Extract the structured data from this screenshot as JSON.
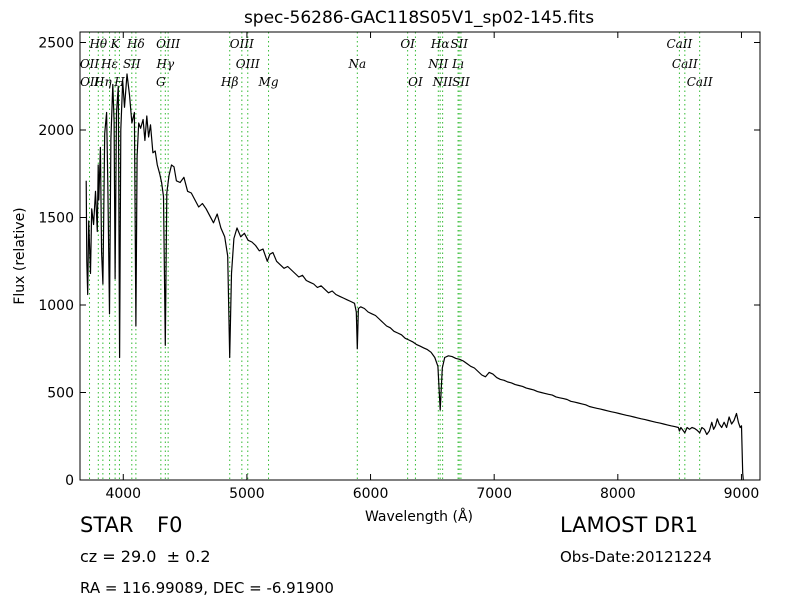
{
  "chart_data": {
    "type": "line",
    "title": "spec-56286-GAC118S05V1_sp02-145.fits",
    "xlabel": "Wavelength (Å)",
    "ylabel": "Flux (relative)",
    "xlim": [
      3650,
      9150
    ],
    "ylim": [
      0,
      2560
    ],
    "xticks": [
      4000,
      5000,
      6000,
      7000,
      8000,
      9000
    ],
    "yticks": [
      0,
      500,
      1000,
      1500,
      2000,
      2500
    ],
    "grid": false,
    "series": [
      {
        "color": "#000000",
        "points": [
          [
            3700,
            1710
          ],
          [
            3705,
            1250
          ],
          [
            3712,
            1060
          ],
          [
            3720,
            1480
          ],
          [
            3735,
            1180
          ],
          [
            3745,
            1550
          ],
          [
            3760,
            1460
          ],
          [
            3775,
            1650
          ],
          [
            3790,
            1420
          ],
          [
            3797,
            1800
          ],
          [
            3802,
            1600
          ],
          [
            3815,
            1900
          ],
          [
            3825,
            1300
          ],
          [
            3835,
            1120
          ],
          [
            3850,
            1980
          ],
          [
            3865,
            2100
          ],
          [
            3875,
            1700
          ],
          [
            3889,
            950
          ],
          [
            3900,
            1950
          ],
          [
            3915,
            2260
          ],
          [
            3926,
            2050
          ],
          [
            3934,
            1150
          ],
          [
            3945,
            2100
          ],
          [
            3960,
            2250
          ],
          [
            3970,
            700
          ],
          [
            3980,
            2000
          ],
          [
            3995,
            2280
          ],
          [
            4010,
            2130
          ],
          [
            4030,
            2320
          ],
          [
            4050,
            2200
          ],
          [
            4070,
            2040
          ],
          [
            4090,
            2100
          ],
          [
            4102,
            880
          ],
          [
            4112,
            1850
          ],
          [
            4125,
            2040
          ],
          [
            4140,
            2010
          ],
          [
            4160,
            2060
          ],
          [
            4175,
            1940
          ],
          [
            4190,
            2080
          ],
          [
            4205,
            1960
          ],
          [
            4220,
            2030
          ],
          [
            4240,
            1870
          ],
          [
            4258,
            1880
          ],
          [
            4275,
            1800
          ],
          [
            4295,
            1750
          ],
          [
            4310,
            1700
          ],
          [
            4325,
            1620
          ],
          [
            4340,
            770
          ],
          [
            4352,
            1640
          ],
          [
            4370,
            1740
          ],
          [
            4390,
            1800
          ],
          [
            4410,
            1790
          ],
          [
            4430,
            1710
          ],
          [
            4460,
            1700
          ],
          [
            4490,
            1730
          ],
          [
            4520,
            1650
          ],
          [
            4550,
            1640
          ],
          [
            4580,
            1600
          ],
          [
            4610,
            1560
          ],
          [
            4640,
            1580
          ],
          [
            4670,
            1550
          ],
          [
            4700,
            1510
          ],
          [
            4730,
            1470
          ],
          [
            4760,
            1520
          ],
          [
            4790,
            1440
          ],
          [
            4820,
            1390
          ],
          [
            4845,
            1280
          ],
          [
            4861,
            700
          ],
          [
            4875,
            1180
          ],
          [
            4895,
            1380
          ],
          [
            4920,
            1440
          ],
          [
            4950,
            1390
          ],
          [
            4980,
            1410
          ],
          [
            5010,
            1370
          ],
          [
            5040,
            1360
          ],
          [
            5070,
            1340
          ],
          [
            5100,
            1310
          ],
          [
            5130,
            1320
          ],
          [
            5165,
            1250
          ],
          [
            5185,
            1290
          ],
          [
            5210,
            1300
          ],
          [
            5240,
            1250
          ],
          [
            5270,
            1230
          ],
          [
            5300,
            1210
          ],
          [
            5330,
            1220
          ],
          [
            5360,
            1200
          ],
          [
            5390,
            1180
          ],
          [
            5420,
            1160
          ],
          [
            5450,
            1170
          ],
          [
            5480,
            1140
          ],
          [
            5510,
            1130
          ],
          [
            5540,
            1120
          ],
          [
            5570,
            1100
          ],
          [
            5600,
            1110
          ],
          [
            5630,
            1090
          ],
          [
            5660,
            1070
          ],
          [
            5690,
            1080
          ],
          [
            5720,
            1060
          ],
          [
            5750,
            1050
          ],
          [
            5780,
            1040
          ],
          [
            5810,
            1030
          ],
          [
            5840,
            1020
          ],
          [
            5870,
            1010
          ],
          [
            5885,
            960
          ],
          [
            5893,
            750
          ],
          [
            5902,
            980
          ],
          [
            5920,
            990
          ],
          [
            5950,
            980
          ],
          [
            5980,
            960
          ],
          [
            6010,
            950
          ],
          [
            6040,
            940
          ],
          [
            6070,
            920
          ],
          [
            6100,
            900
          ],
          [
            6130,
            880
          ],
          [
            6160,
            870
          ],
          [
            6190,
            850
          ],
          [
            6220,
            840
          ],
          [
            6250,
            830
          ],
          [
            6280,
            810
          ],
          [
            6310,
            800
          ],
          [
            6340,
            790
          ],
          [
            6370,
            775
          ],
          [
            6400,
            765
          ],
          [
            6430,
            755
          ],
          [
            6460,
            745
          ],
          [
            6490,
            730
          ],
          [
            6520,
            700
          ],
          [
            6545,
            650
          ],
          [
            6563,
            400
          ],
          [
            6580,
            640
          ],
          [
            6600,
            700
          ],
          [
            6630,
            710
          ],
          [
            6660,
            705
          ],
          [
            6690,
            695
          ],
          [
            6720,
            690
          ],
          [
            6750,
            680
          ],
          [
            6780,
            665
          ],
          [
            6810,
            650
          ],
          [
            6840,
            640
          ],
          [
            6870,
            620
          ],
          [
            6900,
            600
          ],
          [
            6930,
            590
          ],
          [
            6960,
            615
          ],
          [
            6990,
            605
          ],
          [
            7020,
            585
          ],
          [
            7050,
            575
          ],
          [
            7080,
            570
          ],
          [
            7110,
            560
          ],
          [
            7140,
            555
          ],
          [
            7170,
            545
          ],
          [
            7200,
            540
          ],
          [
            7230,
            535
          ],
          [
            7260,
            525
          ],
          [
            7290,
            520
          ],
          [
            7320,
            515
          ],
          [
            7350,
            505
          ],
          [
            7380,
            500
          ],
          [
            7410,
            495
          ],
          [
            7440,
            490
          ],
          [
            7470,
            485
          ],
          [
            7500,
            475
          ],
          [
            7530,
            470
          ],
          [
            7560,
            465
          ],
          [
            7590,
            460
          ],
          [
            7620,
            450
          ],
          [
            7650,
            445
          ],
          [
            7680,
            440
          ],
          [
            7710,
            435
          ],
          [
            7740,
            430
          ],
          [
            7770,
            420
          ],
          [
            7800,
            415
          ],
          [
            7830,
            410
          ],
          [
            7860,
            405
          ],
          [
            7890,
            400
          ],
          [
            7920,
            395
          ],
          [
            7950,
            390
          ],
          [
            7980,
            385
          ],
          [
            8010,
            380
          ],
          [
            8040,
            375
          ],
          [
            8070,
            370
          ],
          [
            8100,
            365
          ],
          [
            8130,
            360
          ],
          [
            8160,
            355
          ],
          [
            8190,
            350
          ],
          [
            8220,
            345
          ],
          [
            8250,
            340
          ],
          [
            8280,
            335
          ],
          [
            8310,
            330
          ],
          [
            8340,
            325
          ],
          [
            8370,
            320
          ],
          [
            8400,
            315
          ],
          [
            8430,
            310
          ],
          [
            8460,
            305
          ],
          [
            8490,
            300
          ],
          [
            8498,
            280
          ],
          [
            8510,
            300
          ],
          [
            8542,
            270
          ],
          [
            8560,
            300
          ],
          [
            8580,
            290
          ],
          [
            8600,
            300
          ],
          [
            8620,
            295
          ],
          [
            8640,
            285
          ],
          [
            8662,
            270
          ],
          [
            8680,
            300
          ],
          [
            8700,
            290
          ],
          [
            8720,
            260
          ],
          [
            8740,
            280
          ],
          [
            8760,
            330
          ],
          [
            8775,
            290
          ],
          [
            8790,
            310
          ],
          [
            8805,
            350
          ],
          [
            8820,
            320
          ],
          [
            8840,
            300
          ],
          [
            8860,
            330
          ],
          [
            8880,
            300
          ],
          [
            8900,
            360
          ],
          [
            8920,
            320
          ],
          [
            8940,
            340
          ],
          [
            8960,
            380
          ],
          [
            8975,
            330
          ],
          [
            8990,
            300
          ],
          [
            9000,
            310
          ],
          [
            9010,
            40
          ],
          [
            9015,
            0
          ]
        ]
      }
    ],
    "spectral_lines": [
      {
        "label": "Hθ",
        "wavelength": 3798,
        "row": 0
      },
      {
        "label": "K",
        "wavelength": 3934,
        "row": 0
      },
      {
        "label": "Hδ",
        "wavelength": 4102,
        "row": 0
      },
      {
        "label": "OIII",
        "wavelength": 4363,
        "row": 0
      },
      {
        "label": "OIII",
        "wavelength": 4959,
        "row": 0
      },
      {
        "label": "OI",
        "wavelength": 6300,
        "row": 0
      },
      {
        "label": "Hα",
        "wavelength": 6563,
        "row": 0
      },
      {
        "label": "SII",
        "wavelength": 6717,
        "row": 0
      },
      {
        "label": "CaII",
        "wavelength": 8498,
        "row": 0
      },
      {
        "label": "OII",
        "wavelength": 3727,
        "row": 1
      },
      {
        "label": "Hε",
        "wavelength": 3889,
        "row": 1
      },
      {
        "label": "SII",
        "wavelength": 4069,
        "row": 1
      },
      {
        "label": "Hγ",
        "wavelength": 4340,
        "row": 1
      },
      {
        "label": "OIII",
        "wavelength": 5007,
        "row": 1
      },
      {
        "label": "NII",
        "wavelength": 6548,
        "row": 1
      },
      {
        "label": "Lı",
        "wavelength": 6708,
        "row": 1
      },
      {
        "label": "CaII",
        "wavelength": 8542,
        "row": 1
      },
      {
        "label": "OII",
        "wavelength": 3729,
        "row": 2
      },
      {
        "label": "Hη",
        "wavelength": 3835,
        "row": 2
      },
      {
        "label": "H",
        "wavelength": 3969,
        "row": 2
      },
      {
        "label": "G",
        "wavelength": 4304,
        "row": 2
      },
      {
        "label": "Hβ",
        "wavelength": 4861,
        "row": 2
      },
      {
        "label": "Mg",
        "wavelength": 5175,
        "row": 2
      },
      {
        "label": "Na",
        "wavelength": 5893,
        "row": 1
      },
      {
        "label": "OI",
        "wavelength": 6363,
        "row": 2
      },
      {
        "label": "NII",
        "wavelength": 6583,
        "row": 2
      },
      {
        "label": "SII",
        "wavelength": 6731,
        "row": 2
      },
      {
        "label": "CaII",
        "wavelength": 8662,
        "row": 2
      }
    ],
    "line_marker_color": "#33bb33"
  },
  "info": {
    "class_label": "STAR",
    "subclass_label": "F0",
    "survey_label": "LAMOST DR1",
    "cz_text": "cz = 29.0  ± 0.2",
    "obs_date": "Obs-Date:20121224",
    "coords": "RA = 116.99089, DEC = -6.91900"
  }
}
